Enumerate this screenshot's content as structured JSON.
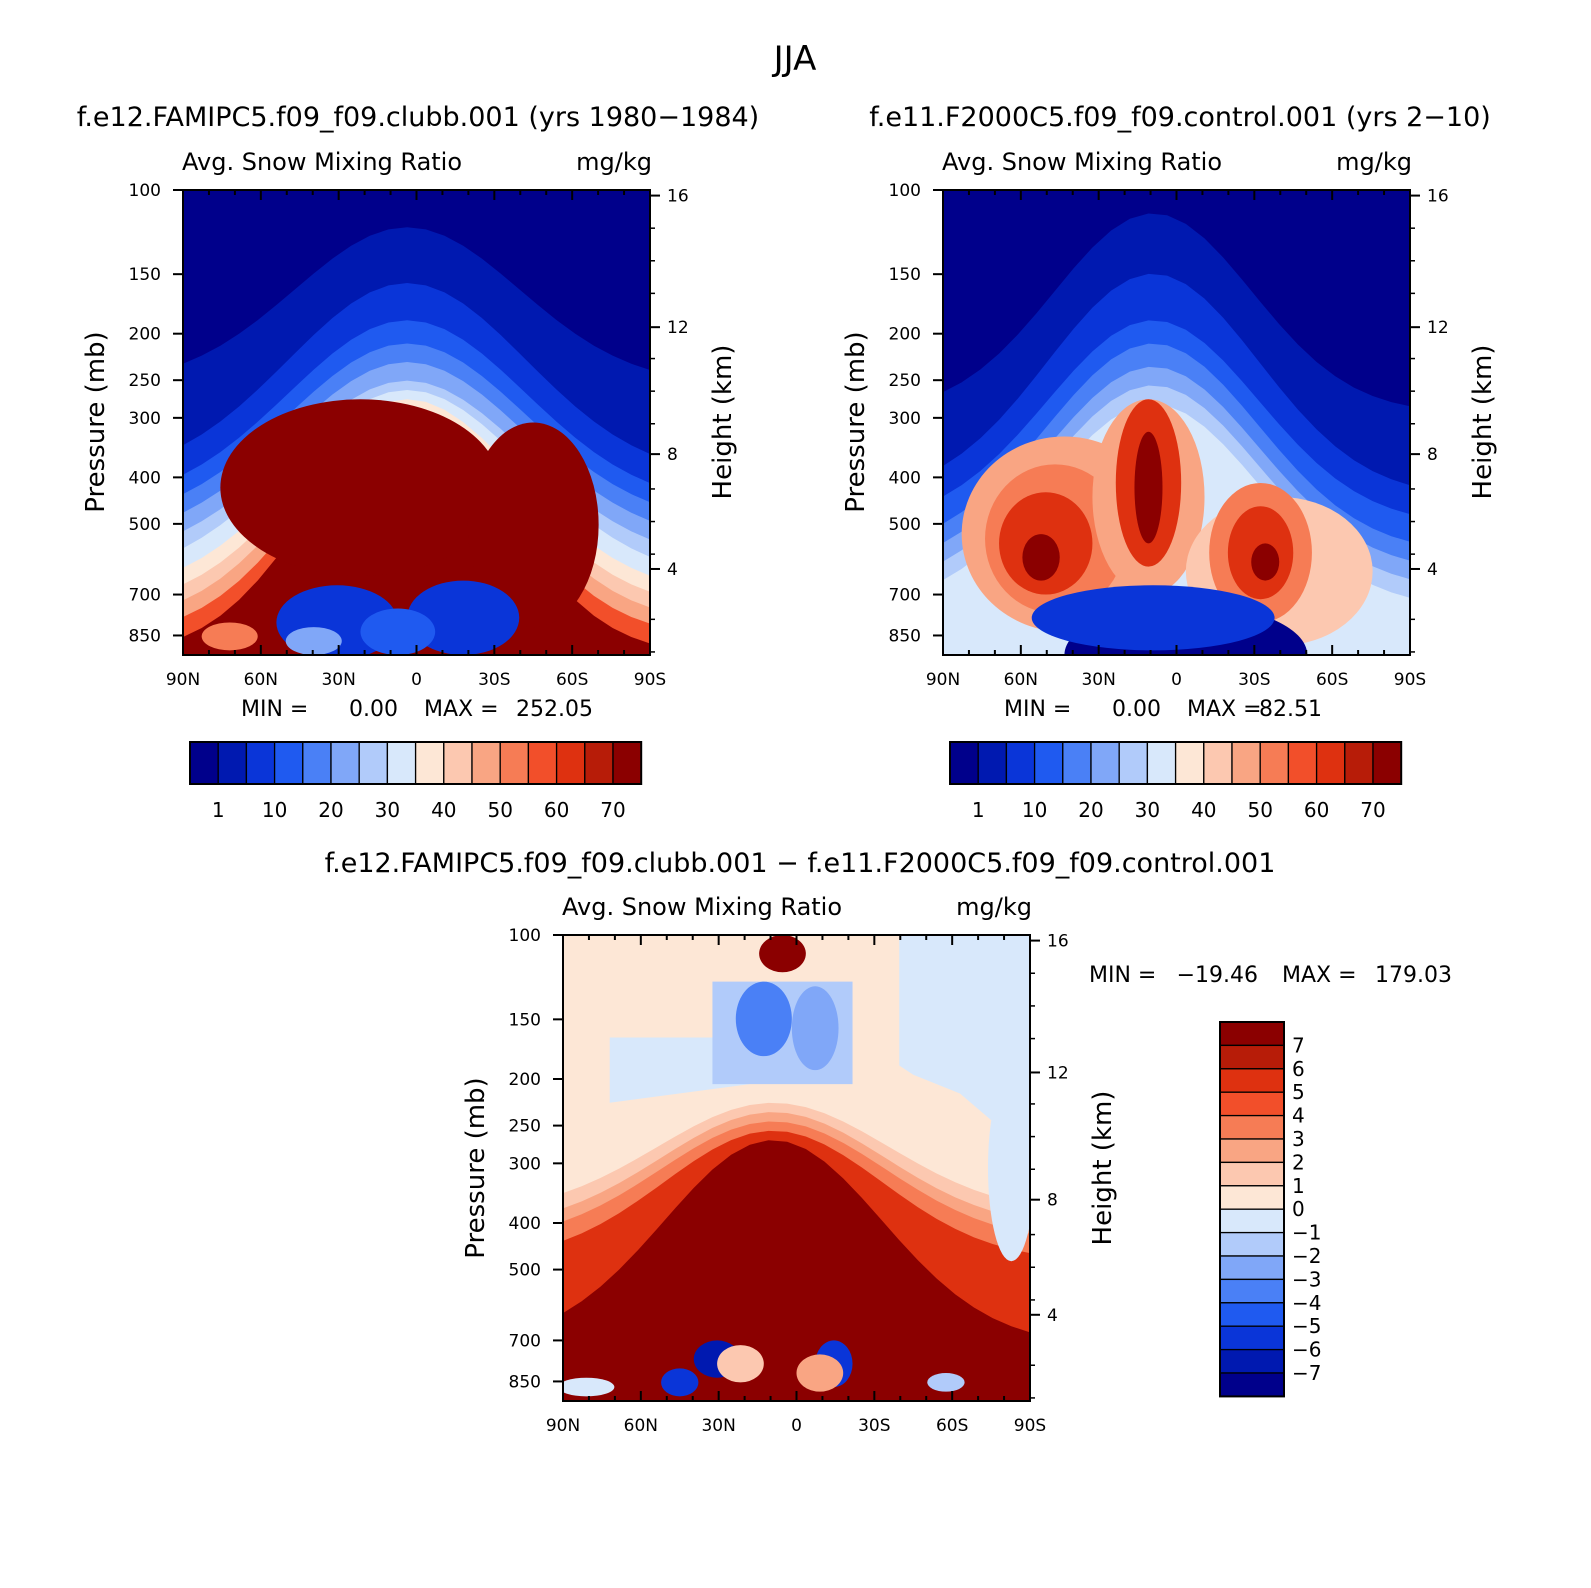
{
  "page_title": "JJA",
  "chart_data": [
    {
      "id": "panel_a",
      "type": "heatmap",
      "title": "f.e12.FAMIPC5.f09_f09.clubb.001 (yrs 1980−1984)",
      "subtitle_left": "Avg. Snow Mixing Ratio",
      "subtitle_right": "mg/kg",
      "ylabel": "Pressure (mb)",
      "y2label": "Height (km)",
      "x_ticks": [
        "90N",
        "60N",
        "30N",
        "0",
        "30S",
        "60S",
        "90S"
      ],
      "y_ticks": [
        "100",
        "150",
        "200",
        "250",
        "300",
        "400",
        "500",
        "700",
        "850"
      ],
      "y2_ticks": [
        "16",
        "12",
        "8",
        "4"
      ],
      "min_label": "MIN =",
      "min_value": "0.00",
      "max_label": "MAX =",
      "max_value": "252.05",
      "colorbar_labels": [
        "1",
        "10",
        "20",
        "30",
        "40",
        "50",
        "60",
        "70"
      ]
    },
    {
      "id": "panel_b",
      "type": "heatmap",
      "title": "f.e11.F2000C5.f09_f09.control.001 (yrs 2−10)",
      "subtitle_left": "Avg. Snow Mixing Ratio",
      "subtitle_right": "mg/kg",
      "ylabel": "Pressure (mb)",
      "y2label": "Height (km)",
      "x_ticks": [
        "90N",
        "60N",
        "30N",
        "0",
        "30S",
        "60S",
        "90S"
      ],
      "y_ticks": [
        "100",
        "150",
        "200",
        "250",
        "300",
        "400",
        "500",
        "700",
        "850"
      ],
      "y2_ticks": [
        "16",
        "12",
        "8",
        "4"
      ],
      "min_label": "MIN =",
      "min_value": "0.00",
      "max_label": "MAX =",
      "max_value": "82.51",
      "colorbar_labels": [
        "1",
        "10",
        "20",
        "30",
        "40",
        "50",
        "60",
        "70"
      ]
    },
    {
      "id": "panel_c",
      "type": "heatmap",
      "title": "f.e12.FAMIPC5.f09_f09.clubb.001 − f.e11.F2000C5.f09_f09.control.001",
      "subtitle_left": "Avg. Snow Mixing Ratio",
      "subtitle_right": "mg/kg",
      "ylabel": "Pressure (mb)",
      "y2label": "Height (km)",
      "x_ticks": [
        "90N",
        "60N",
        "30N",
        "0",
        "30S",
        "60S",
        "90S"
      ],
      "y_ticks": [
        "100",
        "150",
        "200",
        "250",
        "300",
        "400",
        "500",
        "700",
        "850"
      ],
      "y2_ticks": [
        "16",
        "12",
        "8",
        "4"
      ],
      "min_label": "MIN =",
      "min_value": "−19.46",
      "max_label": "MAX =",
      "max_value": "179.03",
      "colorbar_labels": [
        "7",
        "6",
        "5",
        "4",
        "3",
        "2",
        "1",
        "0",
        "−1",
        "−2",
        "−3",
        "−4",
        "−5",
        "−6",
        "−7"
      ]
    }
  ],
  "colors": {
    "seq": [
      "#00008b",
      "#0019b0",
      "#0a35d8",
      "#1f5af0",
      "#4a80f6",
      "#80a7f8",
      "#b1cbfa",
      "#d8e8fb",
      "#fde7d6",
      "#fcc8b0",
      "#f9a583",
      "#f67c55",
      "#f24f2a",
      "#de3110",
      "#b71c08",
      "#8b0000"
    ],
    "div": [
      "#8b0000",
      "#b71c08",
      "#de3110",
      "#f24f2a",
      "#f67c55",
      "#f9a583",
      "#fcc8b0",
      "#fde7d6",
      "#d8e8fb",
      "#b1cbfa",
      "#80a7f8",
      "#4a80f6",
      "#1f5af0",
      "#0a35d8",
      "#0019b0",
      "#00008b"
    ]
  }
}
